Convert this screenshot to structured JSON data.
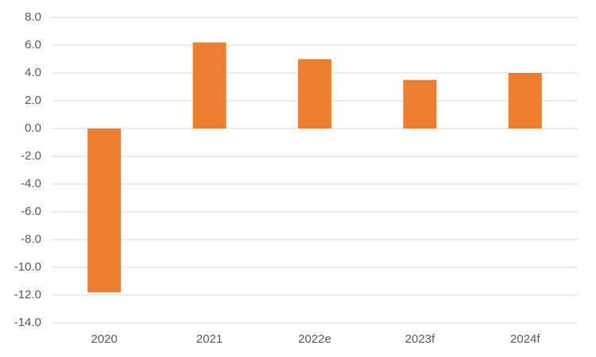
{
  "chart_data": {
    "type": "bar",
    "categories": [
      "2020",
      "2021",
      "2022e",
      "2023f",
      "2024f"
    ],
    "values": [
      -11.8,
      6.2,
      5.0,
      3.5,
      4.0
    ],
    "color": "#ed7d31",
    "ylim": [
      -14,
      8
    ],
    "yticks": [
      {
        "value": -14,
        "label": "-14.0"
      },
      {
        "value": -12,
        "label": "-12.0"
      },
      {
        "value": -10,
        "label": "-10.0"
      },
      {
        "value": -8,
        "label": "-8.0"
      },
      {
        "value": -6,
        "label": "-6.0"
      },
      {
        "value": -4,
        "label": "-4.0"
      },
      {
        "value": -2,
        "label": "-2.0"
      },
      {
        "value": 0,
        "label": "0.0"
      },
      {
        "value": 2,
        "label": "2.0"
      },
      {
        "value": 4,
        "label": "4.0"
      },
      {
        "value": 6,
        "label": "6.0"
      },
      {
        "value": 8,
        "label": "8.0"
      }
    ],
    "grid": true
  }
}
